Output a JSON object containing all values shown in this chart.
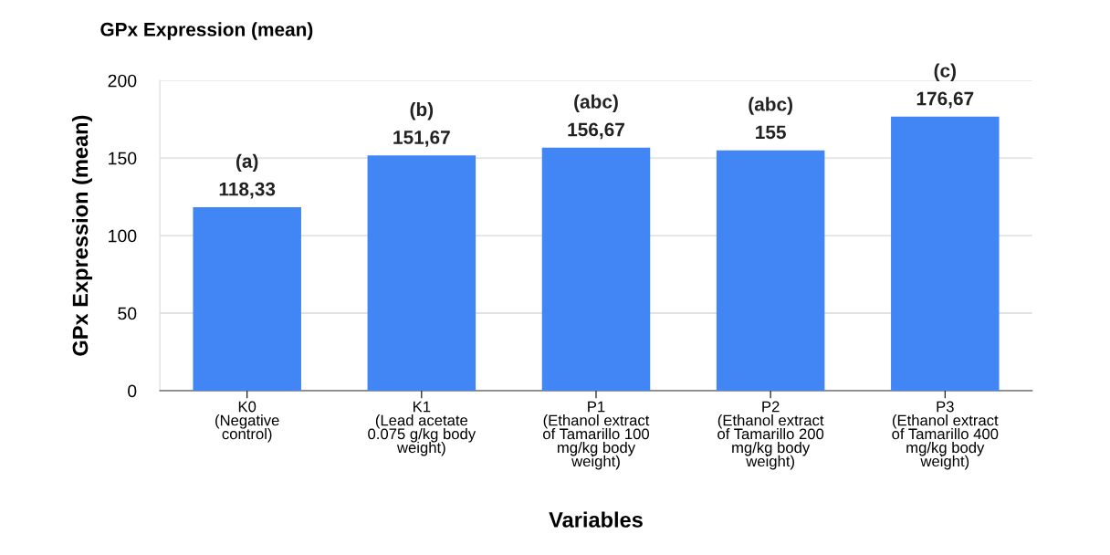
{
  "chart_data": {
    "type": "bar",
    "title": "GPx Expression (mean)",
    "ylabel": "GPx Expression (mean)",
    "xlabel": "Variables",
    "categories": [
      "K0\n(Negative\ncontrol)",
      "K1\n(Lead acetate\n0.075 g/kg body\nweight)",
      "P1\n(Ethanol extract\nof Tamarillo 100\nmg/kg body\nweight)",
      "P2\n(Ethanol extract\nof Tamarillo 200\nmg/kg body\nweight)",
      "P3\n(Ethanol extract\nof Tamarillo 400\nmg/kg body\nweight)"
    ],
    "values": [
      118.33,
      151.67,
      156.67,
      155,
      176.67
    ],
    "value_labels": [
      "118,33",
      "151,67",
      "156,67",
      "155",
      "176,67"
    ],
    "color": "#4285f4",
    "ylim": [
      0,
      200
    ],
    "yticks": [
      0,
      50,
      100,
      150,
      200
    ],
    "grid": "y",
    "annotations": [
      {
        "text": "(a)",
        "x": "K0\n(Negative\ncontrol)",
        "y": 118.33
      },
      {
        "text": "(b)",
        "x": "K1\n(Lead acetate\n0.075 g/kg body\nweight)",
        "y": 151.67
      },
      {
        "text": "(abc)",
        "x": "P1\n(Ethanol extract\nof Tamarillo 100\nmg/kg body\nweight)",
        "y": 156.67
      },
      {
        "text": "(abc)",
        "x": "P2\n(Ethanol extract\nof Tamarillo 200\nmg/kg body\nweight)",
        "y": 155
      },
      {
        "text": "(c)",
        "x": "P3\n(Ethanol extract\nof Tamarillo 400\nmg/kg body\nweight)",
        "y": 176.67
      }
    ]
  }
}
